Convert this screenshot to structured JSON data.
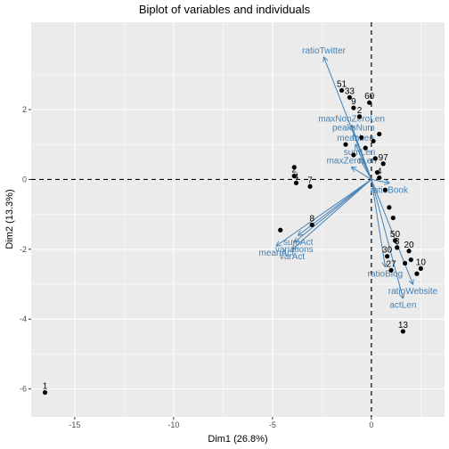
{
  "chart_data": {
    "type": "scatter",
    "title": "Biplot of variables and individuals",
    "xlabel": "Dim1 (26.8%)",
    "ylabel": "Dim2 (13.3%)",
    "xlim": [
      -17.2,
      3.7
    ],
    "ylim": [
      -6.8,
      4.5
    ],
    "xticks": [
      -15,
      -10,
      -5,
      0
    ],
    "yticks": [
      -6,
      -4,
      -2,
      0,
      2
    ],
    "grid": true,
    "reference_lines": {
      "x": 0,
      "y": 0
    },
    "colors": {
      "panel": "#ebebeb",
      "grid": "#ffffff",
      "points": "#000000",
      "arrows": "#4682b4"
    },
    "individuals": [
      {
        "label": "1",
        "x": -16.5,
        "y": -6.1
      },
      {
        "label": "13",
        "x": 1.6,
        "y": -4.35
      },
      {
        "label": "4",
        "x": -3.8,
        "y": -0.1
      },
      {
        "label": "7",
        "x": -3.1,
        "y": -0.2
      },
      {
        "label": "2",
        "x": -3.9,
        "y": 0.1
      },
      {
        "label": "8",
        "x": -3.0,
        "y": -1.3
      },
      {
        "label": "51",
        "x": -1.5,
        "y": 2.55
      },
      {
        "label": "33",
        "x": -1.1,
        "y": 2.35
      },
      {
        "label": "60",
        "x": -0.1,
        "y": 2.2
      },
      {
        "label": "9",
        "x": -0.9,
        "y": 2.05
      },
      {
        "label": "2",
        "x": -0.6,
        "y": 1.8
      },
      {
        "label": "97",
        "x": 0.6,
        "y": 0.45
      },
      {
        "label": "4",
        "x": 0.4,
        "y": 0.05
      },
      {
        "label": "50",
        "x": 1.2,
        "y": -1.75
      },
      {
        "label": "3",
        "x": 1.3,
        "y": -1.95
      },
      {
        "label": "30",
        "x": 0.8,
        "y": -2.2
      },
      {
        "label": "20",
        "x": 1.9,
        "y": -2.05
      },
      {
        "label": "27",
        "x": 1.0,
        "y": -2.6
      },
      {
        "label": "10",
        "x": 2.5,
        "y": -2.55
      },
      {
        "label": "",
        "x": -4.6,
        "y": -1.45
      },
      {
        "label": "",
        "x": -3.9,
        "y": 0.35
      },
      {
        "label": "",
        "x": -1.3,
        "y": 1.0
      },
      {
        "label": "",
        "x": -0.9,
        "y": 0.7
      },
      {
        "label": "",
        "x": -0.5,
        "y": 1.2
      },
      {
        "label": "",
        "x": -0.3,
        "y": 0.9
      },
      {
        "label": "",
        "x": 0.1,
        "y": 1.1
      },
      {
        "label": "",
        "x": 0.2,
        "y": 0.6
      },
      {
        "label": "",
        "x": 0.4,
        "y": 1.3
      },
      {
        "label": "",
        "x": 0.3,
        "y": 0.2
      },
      {
        "label": "",
        "x": 0.7,
        "y": -0.3
      },
      {
        "label": "",
        "x": 0.9,
        "y": -0.8
      },
      {
        "label": "",
        "x": 1.1,
        "y": -1.1
      },
      {
        "label": "",
        "x": 2.0,
        "y": -2.3
      },
      {
        "label": "",
        "x": 2.3,
        "y": -2.7
      },
      {
        "label": "",
        "x": 1.7,
        "y": -2.4
      }
    ],
    "variables": [
      {
        "name": "ratioTwitter",
        "x": -2.4,
        "y": 3.5
      },
      {
        "name": "maxNonZeroLen",
        "x": -1.0,
        "y": 1.55
      },
      {
        "name": "peaksNum",
        "x": -0.9,
        "y": 1.3
      },
      {
        "name": "meanLen",
        "x": -0.8,
        "y": 1.0
      },
      {
        "name": "maxZeroLen",
        "x": -1.0,
        "y": 0.35
      },
      {
        "name": "sumLen",
        "x": -0.6,
        "y": 0.6
      },
      {
        "name": "ratioBook",
        "x": 0.9,
        "y": -0.1
      },
      {
        "name": "ratioBlog",
        "x": 0.7,
        "y": -2.5
      },
      {
        "name": "ratioWebsite",
        "x": 2.1,
        "y": -3.0
      },
      {
        "name": "actLen",
        "x": 1.6,
        "y": -3.4
      },
      {
        "name": "sumAct",
        "x": -3.7,
        "y": -1.6
      },
      {
        "name": "meanAct",
        "x": -4.8,
        "y": -1.9
      },
      {
        "name": "variations",
        "x": -3.9,
        "y": -1.8
      },
      {
        "name": "varAct",
        "x": -4.0,
        "y": -2.0
      }
    ]
  }
}
